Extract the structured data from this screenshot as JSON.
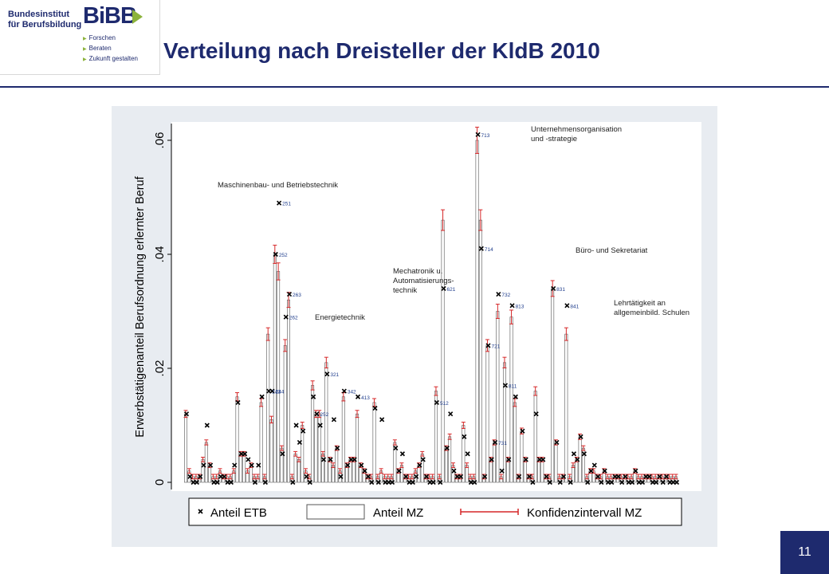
{
  "header": {
    "logo": {
      "line1": "Bundesinstitut",
      "line2": "für Berufsbildung",
      "brand": "BiBB",
      "nav": [
        "Forschen",
        "Beraten",
        "Zukunft gestalten"
      ]
    },
    "title": "Verteilung nach Dreisteller der KldB 2010"
  },
  "footer": {
    "page_number": "11"
  },
  "colors": {
    "brand_navy": "#1e2a6e",
    "brand_green": "#8cb33b",
    "ci_red": "#d62728",
    "bar_outline": "#555555",
    "marker": "#000000",
    "plot_bg": "#ffffff",
    "frame_bg": "#e8ecf1"
  },
  "chart_data": {
    "type": "bar",
    "ylabel": "Erwerbstätigenanteil Berufsordnung erlernter Beruf",
    "xlabel": "",
    "ylim": [
      0,
      0.065
    ],
    "yticks": [
      {
        "value": 0,
        "label": "0"
      },
      {
        "value": 0.02,
        "label": ".02"
      },
      {
        "value": 0.04,
        "label": ".04"
      },
      {
        "value": 0.06,
        "label": ".06"
      }
    ],
    "grid": false,
    "legend_position": "bottom",
    "legend": {
      "etb": "Anteil ETB",
      "mz": "Anteil MZ",
      "ci": "Konfidenzintervall MZ"
    },
    "series_meta": {
      "bars": "Anteil MZ",
      "markers": "Anteil ETB",
      "errorbars": "Konfidenzintervall MZ"
    },
    "categories_count": 144,
    "mz": [
      0.012,
      0.002,
      0.001,
      0.001,
      0.001,
      0.004,
      0.007,
      0.003,
      0.001,
      0.001,
      0.002,
      0.001,
      0.001,
      0.001,
      0.002,
      0.015,
      0.005,
      0.005,
      0.002,
      0.003,
      0.001,
      0.001,
      0.014,
      0.001,
      0.026,
      0.011,
      0.04,
      0.037,
      0.006,
      0.024,
      0.032,
      0.001,
      0.005,
      0.004,
      0.01,
      0.002,
      0.001,
      0.017,
      0.012,
      0.012,
      0.005,
      0.021,
      0.004,
      0.003,
      0.006,
      0.002,
      0.015,
      0.003,
      0.004,
      0.004,
      0.012,
      0.003,
      0.002,
      0.001,
      0.001,
      0.014,
      0.001,
      0.002,
      0.001,
      0.001,
      0.001,
      0.007,
      0.002,
      0.003,
      0.001,
      0.001,
      0.001,
      0.002,
      0.003,
      0.005,
      0.001,
      0.001,
      0.001,
      0.016,
      0.001,
      0.046,
      0.006,
      0.008,
      0.003,
      0.001,
      0.001,
      0.01,
      0.003,
      0.001,
      0.001,
      0.06,
      0.046,
      0.001,
      0.024,
      0.004,
      0.007,
      0.03,
      0.001,
      0.021,
      0.004,
      0.029,
      0.014,
      0.001,
      0.009,
      0.004,
      0.001,
      0.001,
      0.016,
      0.004,
      0.004,
      0.001,
      0.001,
      0.034,
      0.007,
      0.001,
      0.001,
      0.026,
      0.001,
      0.003,
      0.004,
      0.008,
      0.006,
      0.001,
      0.002,
      0.002,
      0.001,
      0.001,
      0.002,
      0.001,
      0.001,
      0.001,
      0.001,
      0.001,
      0.001,
      0.001,
      0.001,
      0.002,
      0.001,
      0.001,
      0.001,
      0.001,
      0.001,
      0.001,
      0.001,
      0.001,
      0.001,
      0.001,
      0.001,
      0.001
    ],
    "etb": [
      0.012,
      0.001,
      0.0,
      0.0,
      0.001,
      0.003,
      0.01,
      0.003,
      0.0,
      0.0,
      0.001,
      0.001,
      0.0,
      0.0,
      0.003,
      0.014,
      0.005,
      0.005,
      0.004,
      0.003,
      0.0,
      0.003,
      0.015,
      0.0,
      0.016,
      0.016,
      0.04,
      0.049,
      0.005,
      0.029,
      0.033,
      0.0,
      0.01,
      0.007,
      0.009,
      0.001,
      0.0,
      0.015,
      0.012,
      0.01,
      0.004,
      0.019,
      0.004,
      0.011,
      0.006,
      0.001,
      0.016,
      0.003,
      0.004,
      0.004,
      0.015,
      0.003,
      0.002,
      0.001,
      0.0,
      0.013,
      0.0,
      0.011,
      0.0,
      0.0,
      0.0,
      0.006,
      0.002,
      0.005,
      0.001,
      0.0,
      0.0,
      0.001,
      0.003,
      0.004,
      0.001,
      0.0,
      0.0,
      0.014,
      0.0,
      0.034,
      0.006,
      0.012,
      0.002,
      0.001,
      0.001,
      0.008,
      0.005,
      0.0,
      0.0,
      0.061,
      0.041,
      0.001,
      0.024,
      0.004,
      0.007,
      0.033,
      0.002,
      0.017,
      0.004,
      0.031,
      0.015,
      0.001,
      0.009,
      0.004,
      0.001,
      0.0,
      0.012,
      0.004,
      0.004,
      0.001,
      0.0,
      0.034,
      0.007,
      0.0,
      0.001,
      0.031,
      0.0,
      0.005,
      0.004,
      0.008,
      0.005,
      0.0,
      0.002,
      0.003,
      0.001,
      0.0,
      0.002,
      0.0,
      0.0,
      0.001,
      0.001,
      0.0,
      0.001,
      0.0,
      0.0,
      0.002,
      0.0,
      0.0,
      0.001,
      0.001,
      0.0,
      0.0,
      0.001,
      0.0,
      0.001,
      0.0,
      0.0,
      0.0
    ],
    "point_labels": [
      {
        "index": 27,
        "text": "251"
      },
      {
        "index": 26,
        "text": "252"
      },
      {
        "index": 30,
        "text": "263"
      },
      {
        "index": 29,
        "text": "262"
      },
      {
        "index": 25,
        "text": "244"
      },
      {
        "index": 24,
        "text": "243"
      },
      {
        "index": 38,
        "text": "252"
      },
      {
        "index": 41,
        "text": "321"
      },
      {
        "index": 46,
        "text": "342"
      },
      {
        "index": 50,
        "text": "413"
      },
      {
        "index": 73,
        "text": "512"
      },
      {
        "index": 75,
        "text": "621"
      },
      {
        "index": 85,
        "text": "713"
      },
      {
        "index": 86,
        "text": "714"
      },
      {
        "index": 88,
        "text": "721"
      },
      {
        "index": 91,
        "text": "732"
      },
      {
        "index": 95,
        "text": "813"
      },
      {
        "index": 93,
        "text": "811"
      },
      {
        "index": 90,
        "text": "731"
      },
      {
        "index": 107,
        "text": "831"
      },
      {
        "index": 111,
        "text": "841"
      }
    ],
    "annotations": [
      {
        "text": "Maschinenbau- und Betriebstechnik",
        "lines": [
          "Maschinenbau- und Betriebstechnik"
        ]
      },
      {
        "text": "Energietechnik",
        "lines": [
          "Energietechnik"
        ]
      },
      {
        "text": "Mechatronik u. Automatisierungs-technik",
        "lines": [
          "Mechatronik u.",
          "Automatisierungs-",
          "technik"
        ]
      },
      {
        "text": "Unternehmensorganisation und -strategie",
        "lines": [
          "Unternehmensorganisation",
          "und -strategie"
        ]
      },
      {
        "text": "Büro- und Sekretariat",
        "lines": [
          "Büro- und Sekretariat"
        ]
      },
      {
        "text": "Lehrtätigkeit an allgemeinbild. Schulen",
        "lines": [
          "Lehrtätigkeit an",
          "allgemeinbild. Schulen"
        ]
      }
    ]
  }
}
